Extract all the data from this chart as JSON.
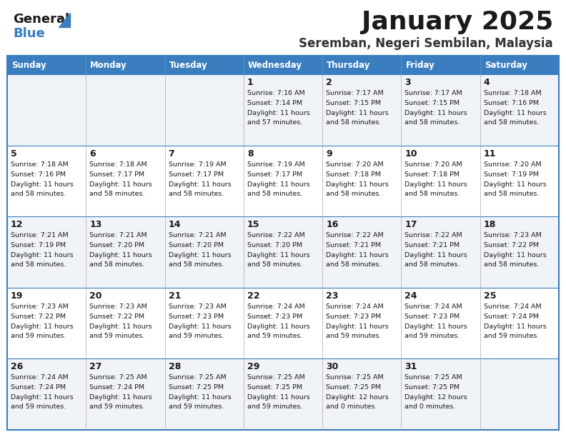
{
  "title": "January 2025",
  "subtitle": "Seremban, Negeri Sembilan, Malaysia",
  "header_bg": "#3a7ebf",
  "header_text_color": "#ffffff",
  "days_of_week": [
    "Sunday",
    "Monday",
    "Tuesday",
    "Wednesday",
    "Thursday",
    "Friday",
    "Saturday"
  ],
  "row_colors": [
    "#f0f4f8",
    "#ffffff"
  ],
  "border_color": "#3a7ebf",
  "calendar": [
    [
      {
        "day": "",
        "sunrise": "",
        "sunset": "",
        "daylight": ""
      },
      {
        "day": "",
        "sunrise": "",
        "sunset": "",
        "daylight": ""
      },
      {
        "day": "",
        "sunrise": "",
        "sunset": "",
        "daylight": ""
      },
      {
        "day": "1",
        "sunrise": "7:16 AM",
        "sunset": "7:14 PM",
        "daylight": "11 hours\nand 57 minutes."
      },
      {
        "day": "2",
        "sunrise": "7:17 AM",
        "sunset": "7:15 PM",
        "daylight": "11 hours\nand 58 minutes."
      },
      {
        "day": "3",
        "sunrise": "7:17 AM",
        "sunset": "7:15 PM",
        "daylight": "11 hours\nand 58 minutes."
      },
      {
        "day": "4",
        "sunrise": "7:18 AM",
        "sunset": "7:16 PM",
        "daylight": "11 hours\nand 58 minutes."
      }
    ],
    [
      {
        "day": "5",
        "sunrise": "7:18 AM",
        "sunset": "7:16 PM",
        "daylight": "11 hours\nand 58 minutes."
      },
      {
        "day": "6",
        "sunrise": "7:18 AM",
        "sunset": "7:17 PM",
        "daylight": "11 hours\nand 58 minutes."
      },
      {
        "day": "7",
        "sunrise": "7:19 AM",
        "sunset": "7:17 PM",
        "daylight": "11 hours\nand 58 minutes."
      },
      {
        "day": "8",
        "sunrise": "7:19 AM",
        "sunset": "7:17 PM",
        "daylight": "11 hours\nand 58 minutes."
      },
      {
        "day": "9",
        "sunrise": "7:20 AM",
        "sunset": "7:18 PM",
        "daylight": "11 hours\nand 58 minutes."
      },
      {
        "day": "10",
        "sunrise": "7:20 AM",
        "sunset": "7:18 PM",
        "daylight": "11 hours\nand 58 minutes."
      },
      {
        "day": "11",
        "sunrise": "7:20 AM",
        "sunset": "7:19 PM",
        "daylight": "11 hours\nand 58 minutes."
      }
    ],
    [
      {
        "day": "12",
        "sunrise": "7:21 AM",
        "sunset": "7:19 PM",
        "daylight": "11 hours\nand 58 minutes."
      },
      {
        "day": "13",
        "sunrise": "7:21 AM",
        "sunset": "7:20 PM",
        "daylight": "11 hours\nand 58 minutes."
      },
      {
        "day": "14",
        "sunrise": "7:21 AM",
        "sunset": "7:20 PM",
        "daylight": "11 hours\nand 58 minutes."
      },
      {
        "day": "15",
        "sunrise": "7:22 AM",
        "sunset": "7:20 PM",
        "daylight": "11 hours\nand 58 minutes."
      },
      {
        "day": "16",
        "sunrise": "7:22 AM",
        "sunset": "7:21 PM",
        "daylight": "11 hours\nand 58 minutes."
      },
      {
        "day": "17",
        "sunrise": "7:22 AM",
        "sunset": "7:21 PM",
        "daylight": "11 hours\nand 58 minutes."
      },
      {
        "day": "18",
        "sunrise": "7:23 AM",
        "sunset": "7:22 PM",
        "daylight": "11 hours\nand 58 minutes."
      }
    ],
    [
      {
        "day": "19",
        "sunrise": "7:23 AM",
        "sunset": "7:22 PM",
        "daylight": "11 hours\nand 59 minutes."
      },
      {
        "day": "20",
        "sunrise": "7:23 AM",
        "sunset": "7:22 PM",
        "daylight": "11 hours\nand 59 minutes."
      },
      {
        "day": "21",
        "sunrise": "7:23 AM",
        "sunset": "7:23 PM",
        "daylight": "11 hours\nand 59 minutes."
      },
      {
        "day": "22",
        "sunrise": "7:24 AM",
        "sunset": "7:23 PM",
        "daylight": "11 hours\nand 59 minutes."
      },
      {
        "day": "23",
        "sunrise": "7:24 AM",
        "sunset": "7:23 PM",
        "daylight": "11 hours\nand 59 minutes."
      },
      {
        "day": "24",
        "sunrise": "7:24 AM",
        "sunset": "7:23 PM",
        "daylight": "11 hours\nand 59 minutes."
      },
      {
        "day": "25",
        "sunrise": "7:24 AM",
        "sunset": "7:24 PM",
        "daylight": "11 hours\nand 59 minutes."
      }
    ],
    [
      {
        "day": "26",
        "sunrise": "7:24 AM",
        "sunset": "7:24 PM",
        "daylight": "11 hours\nand 59 minutes."
      },
      {
        "day": "27",
        "sunrise": "7:25 AM",
        "sunset": "7:24 PM",
        "daylight": "11 hours\nand 59 minutes."
      },
      {
        "day": "28",
        "sunrise": "7:25 AM",
        "sunset": "7:25 PM",
        "daylight": "11 hours\nand 59 minutes."
      },
      {
        "day": "29",
        "sunrise": "7:25 AM",
        "sunset": "7:25 PM",
        "daylight": "11 hours\nand 59 minutes."
      },
      {
        "day": "30",
        "sunrise": "7:25 AM",
        "sunset": "7:25 PM",
        "daylight": "12 hours\nand 0 minutes."
      },
      {
        "day": "31",
        "sunrise": "7:25 AM",
        "sunset": "7:25 PM",
        "daylight": "12 hours\nand 0 minutes."
      },
      {
        "day": "",
        "sunrise": "",
        "sunset": "",
        "daylight": ""
      }
    ]
  ]
}
